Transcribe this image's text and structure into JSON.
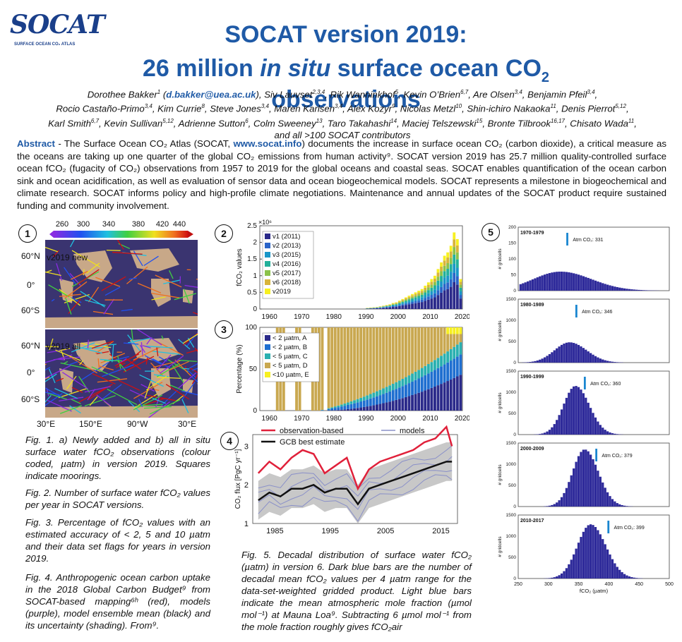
{
  "logo": {
    "word": "SOCAT",
    "sub": "SURFACE OCEAN CO₂ ATLAS"
  },
  "title": {
    "line1": "SOCAT version 2019:",
    "line2_pre": "26 million ",
    "line2_ital": "in situ",
    "line2_post": " surface ocean CO",
    "line2_sub": "2",
    "line2_end": " observations"
  },
  "authors": {
    "lines": [
      [
        "Dorothee Bakker",
        "1",
        " (",
        "d.bakker@uea.ac.uk",
        "), Siv Lauvset",
        "2,3,4",
        ", Rik Wanninkhof",
        "5",
        ", Kevin O’Brien",
        "6,7",
        ", Are Olsen",
        "3,4",
        ", Benjamin Pfeil",
        "3,4",
        ","
      ],
      [
        "Rocio Castaño-Primo",
        "3,4",
        ", Kim Currie",
        "8",
        ", Steve Jones",
        "3,4",
        ", Maren Karlsen",
        "3,4",
        ", Alex Kozyr",
        "9",
        ", Nicolas Metzl",
        "10",
        ", Shin-ichiro Nakaoka",
        "11",
        ", Denis Pierrot",
        "5,12",
        ","
      ],
      [
        "Karl Smith",
        "6,7",
        ", Kevin Sullivan",
        "5,12",
        ", Adrienne Sutton",
        "6",
        ", Colm Sweeney",
        "13",
        ", Taro Takahashi",
        "14",
        ", Maciej Telszewski",
        "15",
        ", Bronte Tilbrook",
        "16,17",
        ", Chisato Wada",
        "11",
        ","
      ],
      [
        "and all >100 SOCAT contributors"
      ]
    ]
  },
  "abstract": {
    "label": "Abstract",
    "text1": " - The Surface Ocean CO₂ Atlas (SOCAT, ",
    "web": "www.socat.info",
    "text2": ") documents the increase in surface ocean CO₂ (carbon dioxide), a critical measure as the oceans are taking up one quarter of the global CO₂ emissions from human activity⁹. SOCAT version 2019 has 25.7 million quality-controlled surface ocean fCO₂ (fugacity of CO₂) observations from 1957 to 2019 for the global oceans and coastal seas. SOCAT enables quantification of the ocean carbon sink and ocean acidification, as well as evaluation of sensor data and ocean biogeochemical models. SOCAT represents a milestone in biogeochemical and climate research. SOCAT informs policy and high-profile climate negotiations. Maintenance and annual updates of the SOCAT product require sustained funding and community involvement."
  },
  "fig1": {
    "badge": "1",
    "colorbar_ticks": [
      "260",
      "300",
      "340",
      "380",
      "420",
      "440"
    ],
    "map_a_label": "v2019 new",
    "map_b_label": "v2019 all",
    "lat_labels": [
      "60°N",
      "0°",
      "60°S"
    ],
    "lon_labels": [
      "30°E",
      "150°E",
      "90°W",
      "30°E"
    ]
  },
  "captions": {
    "fig1": "Fig. 1. a) Newly added and b) all in situ surface water fCO₂ observations (colour coded, µatm) in version 2019. Squares indicate moorings.",
    "fig2": "Fig. 2. Number of surface water fCO₂ values per year in SOCAT versions.",
    "fig3": "Fig. 3. Percentage of fCO₂ values with an estimated accuracy of < 2, 5 and 10 µatm and their data set flags for years in version 2019.",
    "fig4": "Fig. 4. Anthropogenic ocean carbon uptake in the 2018 Global Carbon Budget⁹ from SOCAT-based mapping⁶ʰ (red), models (purple), model ensemble mean (black) and its uncertainty (shading). From⁹.",
    "fig5": "Fig. 5. Decadal distribution of surface water fCO₂ (µatm) in version 6. Dark blue bars are the number of decadal mean fCO₂ values per 4 µatm range for the data-set-weighted gridded product. Light blue bars indicate the mean atmospheric mole fraction (µmol mol⁻¹) at Mauna Loa⁹. Subtracting 6 µmol mol⁻¹ from the mole fraction roughly gives fCO₂air"
  },
  "chart_data": [
    {
      "id": "fig2",
      "type": "bar",
      "badge": "2",
      "ylabel": "fCO₂ values",
      "yunit": "×10⁶",
      "ylim": [
        0,
        2.5
      ],
      "yticks": [
        "0",
        "0.5",
        "1",
        "1.5",
        "2",
        "2.5"
      ],
      "xticks": [
        "1960",
        "1970",
        "1980",
        "1990",
        "2000",
        "2010",
        "2020"
      ],
      "legend": [
        "v1 (2011)",
        "v2 (2013)",
        "v3 (2015)",
        "v4 (2016)",
        "v5 (2017)",
        "v6 (2018)",
        "v2019"
      ],
      "colors": [
        "#2b2a8a",
        "#2a64c8",
        "#1a96c8",
        "#22b09a",
        "#8cc24a",
        "#d8b43a",
        "#f7f020"
      ],
      "years_start": 1990,
      "totals": [
        0.03,
        0.04,
        0.05,
        0.06,
        0.08,
        0.1,
        0.12,
        0.14,
        0.18,
        0.2,
        0.25,
        0.3,
        0.35,
        0.4,
        0.45,
        0.5,
        0.55,
        0.6,
        0.7,
        0.8,
        0.9,
        1.0,
        1.2,
        1.4,
        1.6,
        1.7,
        1.9,
        2.3,
        2.1,
        0.9
      ]
    },
    {
      "id": "fig3",
      "type": "bar",
      "badge": "3",
      "ylabel": "Percentage (%)",
      "ylim": [
        0,
        100
      ],
      "yticks": [
        "0",
        "50",
        "100"
      ],
      "xticks": [
        "1960",
        "1970",
        "1980",
        "1990",
        "2000",
        "2010",
        "2020"
      ],
      "legend": [
        "< 2 µatm, A",
        "< 2 µatm, B",
        "< 5 µatm, C",
        "< 5 µatm, D",
        "<10 µatm, E"
      ],
      "colors": [
        "#2b2a8a",
        "#1f6fd0",
        "#2ab0b0",
        "#c9a850",
        "#f7f020"
      ]
    },
    {
      "id": "fig4",
      "type": "line",
      "badge": "4",
      "ylabel": "CO₂ flux [PgC yr⁻¹]",
      "ylim": [
        1,
        3.3
      ],
      "yticks": [
        "1",
        "2",
        "3"
      ],
      "xticks": [
        "1985",
        "1995",
        "2005",
        "2015"
      ],
      "legend": [
        "observation-based",
        "models",
        "GCB best estimate"
      ],
      "x": [
        1982,
        1984,
        1986,
        1988,
        1990,
        1992,
        1994,
        1996,
        1998,
        2000,
        2002,
        2004,
        2006,
        2008,
        2010,
        2012,
        2014,
        2016,
        2017
      ],
      "series": [
        {
          "name": "observation-based",
          "values": [
            2.3,
            2.6,
            2.4,
            2.7,
            2.9,
            2.8,
            2.3,
            2.5,
            2.7,
            1.9,
            2.4,
            2.6,
            2.7,
            2.8,
            2.9,
            3.1,
            3.2,
            3.5,
            3.0
          ]
        },
        {
          "name": "GCB best estimate",
          "values": [
            1.6,
            1.8,
            1.7,
            1.9,
            1.9,
            2.0,
            1.8,
            1.9,
            1.9,
            1.5,
            1.9,
            2.0,
            2.1,
            2.2,
            2.3,
            2.4,
            2.5,
            2.6,
            2.6
          ]
        }
      ]
    },
    {
      "id": "fig5",
      "type": "bar",
      "badge": "5",
      "ylabel": "# gridcells",
      "xlabel": "fCO₂ (µatm)",
      "xticks": [
        "250",
        "300",
        "350",
        "400",
        "450",
        "500"
      ],
      "panels": [
        {
          "period": "1970-1979",
          "atm": "Atm CO₂: 331",
          "ymax": 200,
          "yticks": [
            "0",
            "50",
            "100",
            "150",
            "200"
          ],
          "peak": 320,
          "height": 60,
          "width": 45
        },
        {
          "period": "1980-1989",
          "atm": "Atm CO₂: 346",
          "ymax": 1500,
          "yticks": [
            "0",
            "500",
            "1000",
            "1500"
          ],
          "peak": 335,
          "height": 480,
          "width": 25
        },
        {
          "period": "1990-1999",
          "atm": "Atm CO₂: 360",
          "ymax": 1500,
          "yticks": [
            "0",
            "500",
            "1000",
            "1500"
          ],
          "peak": 345,
          "height": 1150,
          "width": 20
        },
        {
          "period": "2000-2009",
          "atm": "Atm CO₂: 379",
          "ymax": 1500,
          "yticks": [
            "0",
            "500",
            "1000",
            "1500"
          ],
          "peak": 360,
          "height": 1350,
          "width": 20
        },
        {
          "period": "2010-2017",
          "atm": "Atm CO₂: 399",
          "ymax": 1500,
          "yticks": [
            "0",
            "500",
            "1000",
            "1500"
          ],
          "peak": 370,
          "height": 1280,
          "width": 22
        }
      ]
    }
  ]
}
